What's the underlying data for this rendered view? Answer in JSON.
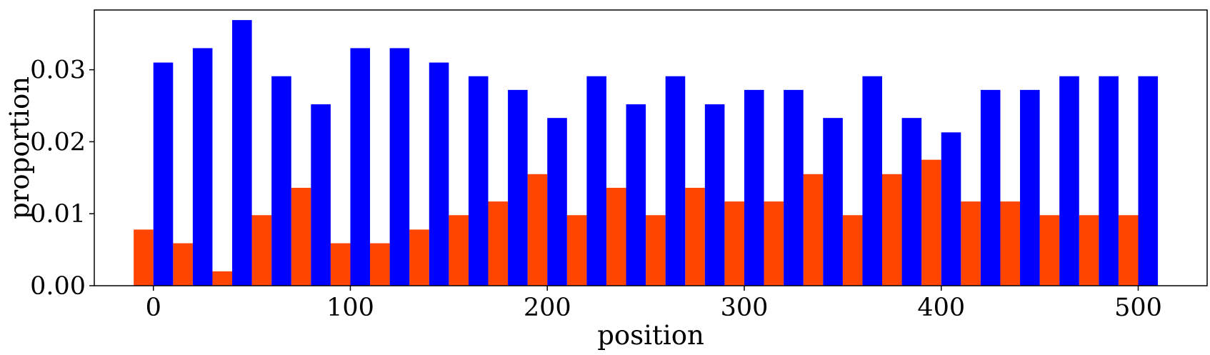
{
  "chart_data": {
    "type": "bar",
    "xlabel": "position",
    "ylabel": "proportion",
    "xlim": [
      -30,
      535
    ],
    "ylim": [
      0,
      0.0383
    ],
    "xticks": [
      0,
      100,
      200,
      300,
      400,
      500
    ],
    "yticks": [
      0.0,
      0.01,
      0.02,
      0.03
    ],
    "ytick_labels": [
      "0.00",
      "0.01",
      "0.02",
      "0.03"
    ],
    "grid": false,
    "x": [
      0,
      20,
      40,
      60,
      80,
      100,
      120,
      140,
      160,
      180,
      200,
      220,
      240,
      260,
      280,
      300,
      320,
      340,
      360,
      380,
      400,
      420,
      440,
      460,
      480,
      500
    ],
    "series": [
      {
        "color": "#ff4500",
        "values": [
          0.0078,
          0.0059,
          0.002,
          0.0098,
          0.0136,
          0.0059,
          0.0059,
          0.0078,
          0.0098,
          0.0117,
          0.0155,
          0.0098,
          0.0136,
          0.0098,
          0.0136,
          0.0117,
          0.0117,
          0.0155,
          0.0098,
          0.0155,
          0.0175,
          0.0117,
          0.0117,
          0.0098,
          0.0098,
          0.0098
        ]
      },
      {
        "color": "#0000ff",
        "values": [
          0.031,
          0.033,
          0.0369,
          0.0291,
          0.0252,
          0.033,
          0.033,
          0.031,
          0.0291,
          0.0272,
          0.0233,
          0.0291,
          0.0252,
          0.0291,
          0.0252,
          0.0272,
          0.0272,
          0.0233,
          0.0291,
          0.0233,
          0.0213,
          0.0272,
          0.0272,
          0.0291,
          0.0291,
          0.0291
        ]
      }
    ]
  }
}
